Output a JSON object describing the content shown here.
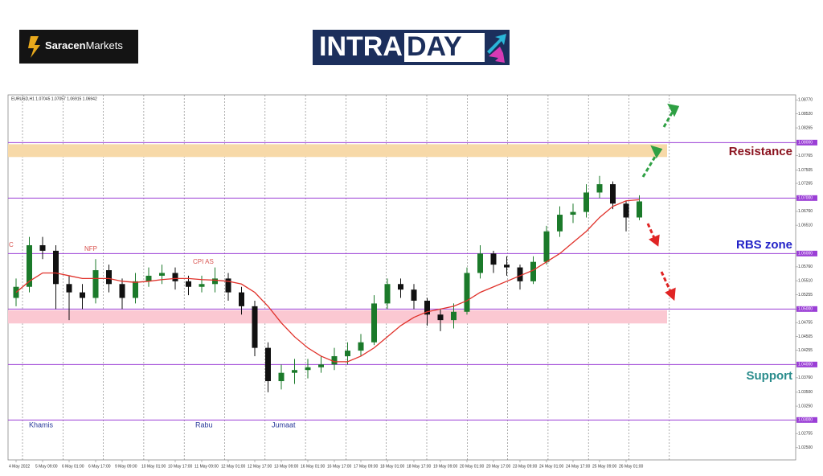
{
  "logos": {
    "brand_a": "Saracen",
    "brand_b": "Markets",
    "intra": "INTRA",
    "day": "DAY"
  },
  "chart_data": {
    "type": "candlestick",
    "header": "EURUSD,H1  1.07045 1.07057 1.06915 1.06942",
    "categories": [
      "4 May 2022",
      null,
      "5 May 09:00",
      null,
      "6 May 01:00",
      null,
      "6 May 17:00",
      null,
      "9 May 09:00",
      null,
      "10 May 01:00",
      null,
      "10 May 17:00",
      null,
      "11 May 09:00",
      null,
      "12 May 01:00",
      null,
      "12 May 17:00",
      null,
      "13 May 09:00",
      null,
      "16 May 01:00",
      null,
      "16 May 17:00",
      null,
      "17 May 09:00",
      null,
      "18 May 01:00",
      null,
      "18 May 17:00",
      null,
      "19 May 09:00",
      null,
      "20 May 01:00",
      null,
      "20 May 17:00",
      null,
      "23 May 09:00",
      null,
      "24 May 01:00",
      null,
      "24 May 17:00",
      null,
      "25 May 09:00",
      null,
      "26 May 01:00",
      null
    ],
    "open": [
      1.052,
      1.054,
      1.0615,
      1.0605,
      1.0545,
      1.053,
      1.052,
      1.057,
      1.0545,
      1.052,
      1.055,
      1.056,
      1.0565,
      1.055,
      1.054,
      1.0545,
      1.0555,
      1.053,
      1.0505,
      1.043,
      1.037,
      1.0385,
      1.039,
      1.0395,
      1.04,
      1.0415,
      1.0425,
      1.044,
      1.051,
      1.0545,
      1.0535,
      1.0515,
      1.049,
      1.048,
      1.0495,
      1.0565,
      1.06,
      1.058,
      1.0575,
      1.055,
      1.0585,
      1.064,
      1.067,
      1.0675,
      1.071,
      1.0725,
      1.069,
      1.0665
    ],
    "high": [
      1.0555,
      1.063,
      1.063,
      1.0615,
      1.056,
      1.0545,
      1.059,
      1.058,
      1.0555,
      1.0565,
      1.0575,
      1.058,
      1.0575,
      1.056,
      1.056,
      1.0575,
      1.0565,
      1.054,
      1.0515,
      1.044,
      1.04,
      1.041,
      1.041,
      1.0415,
      1.043,
      1.044,
      1.0455,
      1.0525,
      1.0555,
      1.0555,
      1.0545,
      1.052,
      1.05,
      1.051,
      1.0575,
      1.0615,
      1.0605,
      1.0595,
      1.058,
      1.0595,
      1.065,
      1.0685,
      1.069,
      1.0725,
      1.074,
      1.073,
      1.0695,
      1.0705
    ],
    "low": [
      1.0505,
      1.053,
      1.059,
      1.05,
      1.048,
      1.05,
      1.051,
      1.053,
      1.05,
      1.051,
      1.054,
      1.0545,
      1.0535,
      1.0525,
      1.053,
      1.053,
      1.0515,
      1.049,
      1.0415,
      1.035,
      1.0355,
      1.0365,
      1.0375,
      1.0385,
      1.039,
      1.04,
      1.0415,
      1.0435,
      1.05,
      1.052,
      1.05,
      1.047,
      1.046,
      1.0465,
      1.049,
      1.0555,
      1.0565,
      1.056,
      1.0535,
      1.0545,
      1.058,
      1.063,
      1.0655,
      1.0665,
      1.07,
      1.068,
      1.064,
      1.066
    ],
    "close": [
      1.054,
      1.0615,
      1.0605,
      1.0545,
      1.053,
      1.052,
      1.057,
      1.0545,
      1.052,
      1.055,
      1.056,
      1.0565,
      1.055,
      1.054,
      1.0545,
      1.0555,
      1.053,
      1.0505,
      1.043,
      1.037,
      1.0385,
      1.039,
      1.0395,
      1.04,
      1.0415,
      1.0425,
      1.044,
      1.051,
      1.0545,
      1.0535,
      1.0515,
      1.049,
      1.048,
      1.0495,
      1.0565,
      1.06,
      1.058,
      1.0575,
      1.055,
      1.0585,
      1.064,
      1.067,
      1.0675,
      1.071,
      1.0725,
      1.069,
      1.0665,
      1.0694
    ],
    "up_color": "#1b7a2a",
    "down_color": "#111111",
    "moving_average": {
      "color": "#e0312a",
      "values": [
        1.053,
        1.055,
        1.0565,
        1.0565,
        1.056,
        1.0555,
        1.0555,
        1.0555,
        1.055,
        1.0548,
        1.055,
        1.0553,
        1.0555,
        1.0555,
        1.0553,
        1.0552,
        1.055,
        1.0545,
        1.053,
        1.0505,
        1.0475,
        1.045,
        1.043,
        1.0415,
        1.0405,
        1.0405,
        1.0415,
        1.043,
        1.045,
        1.047,
        1.0485,
        1.0495,
        1.05,
        1.0505,
        1.0515,
        1.053,
        1.054,
        1.055,
        1.056,
        1.057,
        1.0585,
        1.06,
        1.062,
        1.064,
        1.0665,
        1.0685,
        1.0695,
        1.0697
      ]
    },
    "ylim": [
      1.0228,
      1.0886
    ],
    "yticks": [
      {
        "value": 1.0877,
        "label": "1.08770"
      },
      {
        "value": 1.0852,
        "label": "1.08520"
      },
      {
        "value": 1.08265,
        "label": "1.08265"
      },
      {
        "value": 1.08,
        "label": "1.08000"
      },
      {
        "value": 1.07765,
        "label": "1.07765"
      },
      {
        "value": 1.07505,
        "label": "1.07505"
      },
      {
        "value": 1.07265,
        "label": "1.07265"
      },
      {
        "value": 1.07,
        "label": "1.07000"
      },
      {
        "value": 1.0676,
        "label": "1.06760"
      },
      {
        "value": 1.0651,
        "label": "1.06510"
      },
      {
        "value": 1.06,
        "label": "1.06000"
      },
      {
        "value": 1.0576,
        "label": "1.05760"
      },
      {
        "value": 1.0551,
        "label": "1.05510"
      },
      {
        "value": 1.05255,
        "label": "1.05255"
      },
      {
        "value": 1.05,
        "label": "1.05000"
      },
      {
        "value": 1.04755,
        "label": "1.04755"
      },
      {
        "value": 1.04505,
        "label": "1.04505"
      },
      {
        "value": 1.04255,
        "label": "1.04255"
      },
      {
        "value": 1.04,
        "label": "1.04000"
      },
      {
        "value": 1.0376,
        "label": "1.03760"
      },
      {
        "value": 1.035,
        "label": "1.03500"
      },
      {
        "value": 1.0325,
        "label": "1.03250"
      },
      {
        "value": 1.03,
        "label": "1.03000"
      },
      {
        "value": 1.02755,
        "label": "1.02755"
      },
      {
        "value": 1.025,
        "label": "1.02500"
      }
    ],
    "levels": [
      1.08,
      1.07,
      1.06,
      1.05,
      1.04,
      1.03
    ],
    "level_color": "#9b3fd6",
    "zones": [
      {
        "low": 1.0774,
        "high": 1.0797,
        "color": "#f7d9a8"
      },
      {
        "low": 1.0474,
        "high": 1.0498,
        "color": "#fbc8d2"
      }
    ],
    "annotations": [
      "C",
      "NFP",
      "CPI AS",
      "Khamis",
      "Rabu",
      "Jumaat"
    ],
    "zone_labels": [
      "Resistance",
      "RBS zone",
      "Support"
    ]
  }
}
